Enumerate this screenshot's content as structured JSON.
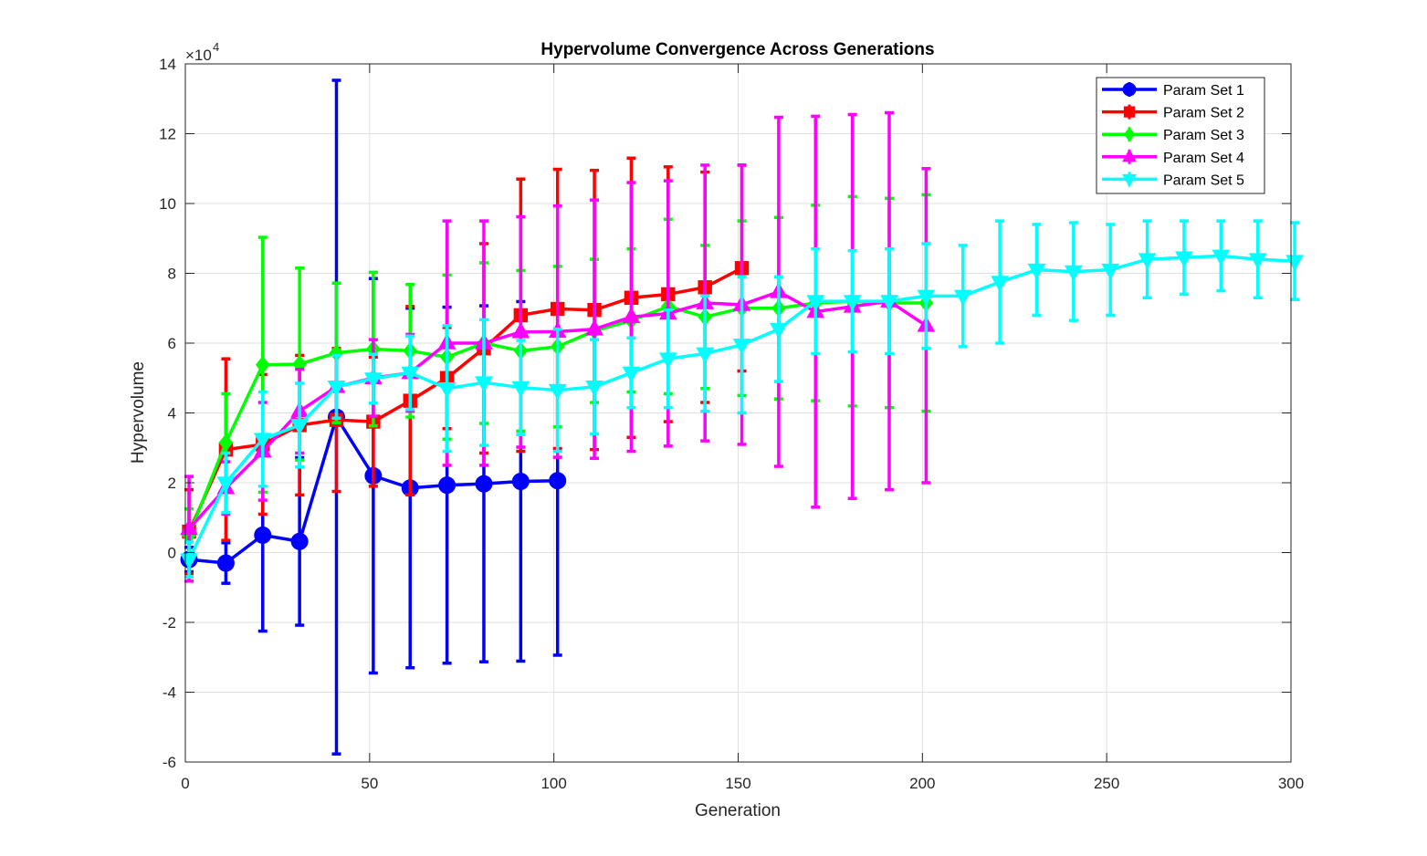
{
  "chart_data": {
    "type": "line",
    "title": "Hypervolume Convergence Across Generations",
    "xlabel": "Generation",
    "ylabel": "Hypervolume",
    "xlim": [
      0,
      300
    ],
    "ylim": [
      -60000,
      140000
    ],
    "xticks": [
      0,
      50,
      100,
      150,
      200,
      250,
      300
    ],
    "yticks": [
      -6,
      -4,
      -2,
      0,
      2,
      4,
      6,
      8,
      10,
      12,
      14
    ],
    "y_exponent_label": "×10",
    "y_exponent_power": "4",
    "grid": true,
    "legend_position": "top-right",
    "error_bars": true,
    "series": [
      {
        "name": "Param Set 1",
        "color": "#0000ff",
        "marker": "circle",
        "x": [
          1,
          11,
          21,
          31,
          41,
          51,
          61,
          71,
          81,
          91,
          101
        ],
        "y": [
          -2000,
          -3000,
          5000,
          3200,
          38800,
          22000,
          18500,
          19300,
          19700,
          20400,
          20600
        ],
        "err": [
          3500,
          5800,
          27500,
          24000,
          96500,
          56500,
          51500,
          51000,
          51000,
          51500,
          50000
        ]
      },
      {
        "name": "Param Set 2",
        "color": "#ff0000",
        "marker": "square",
        "x": [
          1,
          11,
          21,
          31,
          41,
          51,
          61,
          71,
          81,
          91,
          101,
          111,
          121,
          131,
          141,
          151
        ],
        "y": [
          6000,
          29500,
          31000,
          36500,
          38000,
          37500,
          43500,
          50000,
          58500,
          68000,
          69800,
          69500,
          73000,
          74000,
          76000,
          81500
        ],
        "err": [
          12000,
          26000,
          20000,
          20000,
          20500,
          18500,
          27000,
          14500,
          30000,
          39000,
          40000,
          40000,
          40000,
          36500,
          33000,
          29500
        ]
      },
      {
        "name": "Param Set 3",
        "color": "#00ff00",
        "marker": "diamond",
        "x": [
          1,
          11,
          21,
          31,
          41,
          51,
          61,
          71,
          81,
          91,
          101,
          111,
          121,
          131,
          141,
          151,
          161,
          171,
          181,
          191,
          201
        ],
        "y": [
          5000,
          31500,
          53800,
          54000,
          57200,
          58300,
          57800,
          56000,
          60000,
          57800,
          59000,
          63500,
          66500,
          70500,
          67500,
          70000,
          70000,
          71500,
          72000,
          71500,
          71500
        ],
        "err": [
          7500,
          14000,
          36500,
          27500,
          20000,
          22000,
          19000,
          23500,
          23000,
          23000,
          23000,
          20500,
          20500,
          25000,
          20500,
          25000,
          26000,
          28000,
          30000,
          30000,
          31000
        ]
      },
      {
        "name": "Param Set 4",
        "color": "#ff00ff",
        "marker": "triangle-up",
        "x": [
          1,
          11,
          21,
          31,
          41,
          51,
          61,
          71,
          81,
          91,
          101,
          111,
          121,
          131,
          141,
          151,
          161,
          171,
          181,
          191,
          201
        ],
        "y": [
          6800,
          18500,
          29000,
          40500,
          47500,
          50000,
          51500,
          60000,
          60000,
          63200,
          63300,
          64000,
          67500,
          68500,
          71500,
          71000,
          74700,
          69000,
          70500,
          72000,
          65000
        ],
        "err": [
          15000,
          7500,
          14000,
          12000,
          9000,
          11000,
          11000,
          35000,
          35000,
          33000,
          36000,
          37000,
          38500,
          38000,
          39500,
          40000,
          50000,
          56000,
          55000,
          54000,
          45000
        ]
      },
      {
        "name": "Param Set 5",
        "color": "#00ffff",
        "marker": "triangle-down",
        "x": [
          1,
          11,
          21,
          31,
          41,
          51,
          61,
          71,
          81,
          91,
          101,
          111,
          121,
          131,
          141,
          151,
          161,
          171,
          181,
          191,
          201,
          211,
          221,
          231,
          241,
          251,
          261,
          271,
          281,
          291,
          301
        ],
        "y": [
          -2000,
          20000,
          32500,
          36500,
          47500,
          49800,
          51500,
          47000,
          48700,
          47300,
          46500,
          47500,
          51500,
          55500,
          57000,
          59500,
          64000,
          72000,
          72000,
          72000,
          73500,
          73500,
          77500,
          81000,
          80500,
          81000,
          84000,
          84500,
          85000,
          84000,
          83500
        ],
        "err": [
          5000,
          8500,
          13500,
          12000,
          9000,
          7000,
          10500,
          18000,
          18000,
          13500,
          17500,
          13500,
          10000,
          14000,
          16500,
          19500,
          15000,
          15000,
          14500,
          15000,
          15000,
          14500,
          17500,
          13000,
          14000,
          13000,
          11000,
          10500,
          10000,
          11000,
          11000
        ]
      }
    ]
  }
}
